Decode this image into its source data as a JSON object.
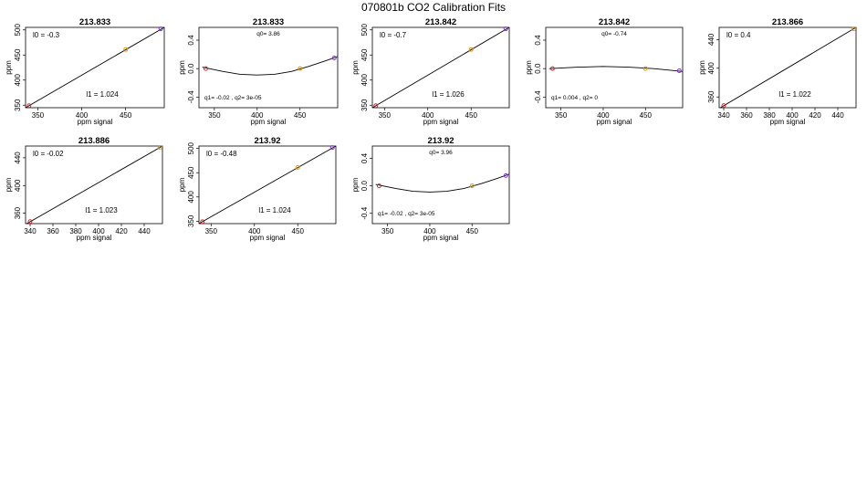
{
  "figure": {
    "title": "070801b   CO2 Calibration Fits"
  },
  "colors": {
    "low": "#d62728",
    "mid": "#e69500",
    "high": "#8a2be2",
    "line": "#000000"
  },
  "chart_data": [
    {
      "type": "line",
      "title": "213.833",
      "xlabel": "ppm signal",
      "ylabel": "ppm",
      "xlim": [
        336,
        494
      ],
      "ylim": [
        345,
        505
      ],
      "xticks": [
        "350",
        "400",
        "450"
      ],
      "yticks": [
        "350",
        "400",
        "450",
        "500"
      ],
      "points": [
        {
          "x": 340,
          "y": 349
        },
        {
          "x": 450,
          "y": 461
        },
        {
          "x": 490,
          "y": 502
        }
      ],
      "fit": [
        {
          "x": 336,
          "y": 345
        },
        {
          "x": 494,
          "y": 505
        }
      ],
      "annotations": [
        {
          "text": "l0 =  -0.3",
          "pos": "top-left"
        },
        {
          "text": "l1 =  1.024",
          "pos": "bottom-center"
        }
      ]
    },
    {
      "type": "line",
      "title": "213.833",
      "xlabel": "ppm signal",
      "ylabel": "ppm",
      "xlim": [
        332,
        494
      ],
      "ylim": [
        -0.55,
        0.58
      ],
      "xticks": [
        "350",
        "400",
        "450"
      ],
      "yticks": [
        "-0.4",
        "0.0",
        "0.4"
      ],
      "points": [
        {
          "x": 340,
          "y": 0.0
        },
        {
          "x": 450,
          "y": 0.0
        },
        {
          "x": 490,
          "y": 0.15
        }
      ],
      "fit": [
        {
          "x": 336,
          "y": 0.02
        },
        {
          "x": 360,
          "y": -0.04
        },
        {
          "x": 380,
          "y": -0.08
        },
        {
          "x": 400,
          "y": -0.09
        },
        {
          "x": 420,
          "y": -0.08
        },
        {
          "x": 440,
          "y": -0.04
        },
        {
          "x": 460,
          "y": 0.03
        },
        {
          "x": 480,
          "y": 0.11
        },
        {
          "x": 494,
          "y": 0.17
        }
      ],
      "annotations": [
        {
          "text": "q0= 3.86",
          "pos": "top-center"
        },
        {
          "text": "q1= -0.02 , q2= 3e-05",
          "pos": "bottom-left"
        }
      ]
    },
    {
      "type": "line",
      "title": "213.842",
      "xlabel": "ppm signal",
      "ylabel": "ppm",
      "xlim": [
        336,
        494
      ],
      "ylim": [
        345,
        505
      ],
      "xticks": [
        "350",
        "400",
        "450"
      ],
      "yticks": [
        "350",
        "400",
        "450",
        "500"
      ],
      "points": [
        {
          "x": 340,
          "y": 349
        },
        {
          "x": 450,
          "y": 461
        },
        {
          "x": 490,
          "y": 502
        }
      ],
      "fit": [
        {
          "x": 336,
          "y": 345
        },
        {
          "x": 494,
          "y": 505
        }
      ],
      "annotations": [
        {
          "text": "l0 =  -0.7",
          "pos": "top-left"
        },
        {
          "text": "l1 =  1.026",
          "pos": "bottom-center"
        }
      ]
    },
    {
      "type": "line",
      "title": "213.842",
      "xlabel": "ppm signal",
      "ylabel": "ppm",
      "xlim": [
        332,
        494
      ],
      "ylim": [
        -0.55,
        0.58
      ],
      "xticks": [
        "350",
        "400",
        "450"
      ],
      "yticks": [
        "-0.4",
        "0.0",
        "0.4"
      ],
      "points": [
        {
          "x": 340,
          "y": 0.0
        },
        {
          "x": 450,
          "y": 0.0
        },
        {
          "x": 490,
          "y": -0.03
        }
      ],
      "fit": [
        {
          "x": 336,
          "y": 0.0
        },
        {
          "x": 370,
          "y": 0.02
        },
        {
          "x": 400,
          "y": 0.03
        },
        {
          "x": 430,
          "y": 0.02
        },
        {
          "x": 460,
          "y": 0.0
        },
        {
          "x": 494,
          "y": -0.04
        }
      ],
      "annotations": [
        {
          "text": "q0= -0.74",
          "pos": "top-center"
        },
        {
          "text": "q1= 0.004 , q2= 0",
          "pos": "bottom-left"
        }
      ]
    },
    {
      "type": "line",
      "title": "213.866",
      "xlabel": "ppm signal",
      "ylabel": "ppm",
      "xlim": [
        336,
        456
      ],
      "ylim": [
        345,
        457
      ],
      "xticks": [
        "340",
        "360",
        "380",
        "400",
        "420",
        "440"
      ],
      "yticks": [
        "360",
        "400",
        "440"
      ],
      "points": [
        {
          "x": 340,
          "y": 348
        },
        {
          "x": 454,
          "y": 455
        }
      ],
      "fit": [
        {
          "x": 336,
          "y": 344
        },
        {
          "x": 456,
          "y": 457
        }
      ],
      "annotations": [
        {
          "text": "l0 =  0.4",
          "pos": "top-left"
        },
        {
          "text": "l1 =  1.022",
          "pos": "bottom-center"
        }
      ]
    },
    {
      "type": "line",
      "title": "213.886",
      "xlabel": "ppm signal",
      "ylabel": "ppm",
      "xlim": [
        336,
        456
      ],
      "ylim": [
        345,
        457
      ],
      "xticks": [
        "340",
        "360",
        "380",
        "400",
        "420",
        "440"
      ],
      "yticks": [
        "360",
        "400",
        "440"
      ],
      "points": [
        {
          "x": 340,
          "y": 348
        },
        {
          "x": 454,
          "y": 455
        }
      ],
      "fit": [
        {
          "x": 336,
          "y": 344
        },
        {
          "x": 456,
          "y": 457
        }
      ],
      "annotations": [
        {
          "text": "l0 =  -0.02",
          "pos": "top-left"
        },
        {
          "text": "l1 =  1.023",
          "pos": "bottom-center"
        }
      ]
    },
    {
      "type": "line",
      "title": "213.92",
      "xlabel": "ppm signal",
      "ylabel": "ppm",
      "xlim": [
        336,
        494
      ],
      "ylim": [
        345,
        505
      ],
      "xticks": [
        "350",
        "400",
        "450"
      ],
      "yticks": [
        "350",
        "400",
        "450",
        "500"
      ],
      "points": [
        {
          "x": 340,
          "y": 349
        },
        {
          "x": 450,
          "y": 461
        },
        {
          "x": 490,
          "y": 502
        }
      ],
      "fit": [
        {
          "x": 336,
          "y": 345
        },
        {
          "x": 494,
          "y": 505
        }
      ],
      "annotations": [
        {
          "text": "l0 =  -0.48",
          "pos": "top-left"
        },
        {
          "text": "l1 =  1.024",
          "pos": "bottom-center"
        }
      ]
    },
    {
      "type": "line",
      "title": "213.92",
      "xlabel": "ppm signal",
      "ylabel": "ppm",
      "xlim": [
        332,
        494
      ],
      "ylim": [
        -0.55,
        0.58
      ],
      "xticks": [
        "350",
        "400",
        "450"
      ],
      "yticks": [
        "-0.4",
        "0.0",
        "0.4"
      ],
      "points": [
        {
          "x": 340,
          "y": 0.0
        },
        {
          "x": 450,
          "y": 0.0
        },
        {
          "x": 490,
          "y": 0.15
        }
      ],
      "fit": [
        {
          "x": 336,
          "y": 0.02
        },
        {
          "x": 360,
          "y": -0.04
        },
        {
          "x": 380,
          "y": -0.08
        },
        {
          "x": 400,
          "y": -0.09
        },
        {
          "x": 420,
          "y": -0.08
        },
        {
          "x": 440,
          "y": -0.04
        },
        {
          "x": 460,
          "y": 0.03
        },
        {
          "x": 480,
          "y": 0.11
        },
        {
          "x": 494,
          "y": 0.17
        }
      ],
      "annotations": [
        {
          "text": "q0= 3.96",
          "pos": "top-center"
        },
        {
          "text": "q1= -0.02 , q2= 3e-05",
          "pos": "bottom-left"
        }
      ]
    }
  ]
}
